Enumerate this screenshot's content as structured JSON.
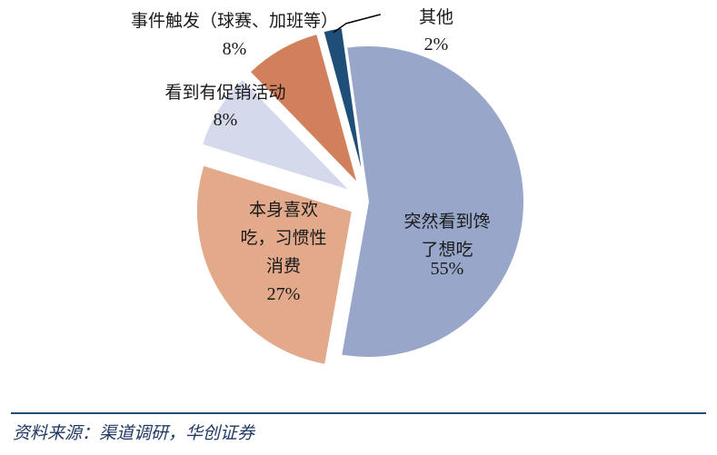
{
  "chart_data": {
    "type": "pie",
    "title": "",
    "slices": [
      {
        "label": "突然看到馋了想吃",
        "lines": [
          "突然看到馋",
          "了想吃"
        ],
        "value": 55,
        "pct_label": "55%",
        "color": "#97a6c9"
      },
      {
        "label": "本身喜欢吃，习惯性消费",
        "lines": [
          "本身喜欢",
          "吃，习惯性",
          "消费"
        ],
        "value": 27,
        "pct_label": "27%",
        "color": "#e2a98b"
      },
      {
        "label": "看到有促销活动",
        "lines": [
          "看到有促销活动"
        ],
        "value": 8,
        "pct_label": "8%",
        "color": "#d4d9ec"
      },
      {
        "label": "事件触发（球赛、加班等）",
        "lines": [
          "事件触发（球赛、加班等）"
        ],
        "value": 8,
        "pct_label": "8%",
        "color": "#d2805c"
      },
      {
        "label": "其他",
        "lines": [
          "其他"
        ],
        "value": 2,
        "pct_label": "2%",
        "color": "#1f4e79"
      }
    ]
  },
  "source": "资料来源：渠道调研，华创证券"
}
